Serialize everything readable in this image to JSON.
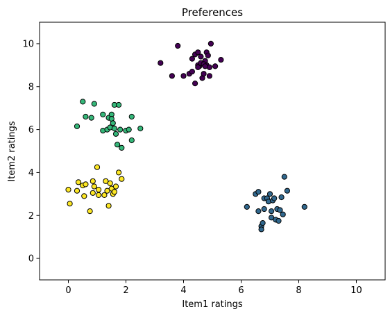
{
  "chart_data": {
    "type": "scatter",
    "title": "Preferences",
    "xlabel": "Item1 ratings",
    "ylabel": "Item2 ratings",
    "xlim": [
      -1,
      11
    ],
    "ylim": [
      -1,
      11
    ],
    "xticks": [
      0,
      2,
      4,
      6,
      8,
      10
    ],
    "yticks": [
      0,
      2,
      4,
      6,
      8,
      10
    ],
    "grid": false,
    "marker_edge_color": "#000000",
    "series": [
      {
        "color": "#440154",
        "points": [
          [
            3.2,
            9.1
          ],
          [
            3.6,
            8.5
          ],
          [
            3.8,
            9.9
          ],
          [
            4.0,
            8.5
          ],
          [
            4.2,
            8.6
          ],
          [
            4.3,
            8.7
          ],
          [
            4.3,
            9.3
          ],
          [
            4.4,
            9.5
          ],
          [
            4.4,
            8.15
          ],
          [
            4.5,
            9.6
          ],
          [
            4.5,
            9.0
          ],
          [
            4.55,
            8.95
          ],
          [
            4.6,
            9.1
          ],
          [
            4.6,
            9.4
          ],
          [
            4.65,
            8.4
          ],
          [
            4.7,
            8.6
          ],
          [
            4.75,
            9.2
          ],
          [
            4.8,
            9.6
          ],
          [
            4.8,
            9.0
          ],
          [
            4.85,
            9.45
          ],
          [
            4.9,
            8.9
          ],
          [
            4.9,
            8.5
          ],
          [
            4.95,
            10.0
          ],
          [
            5.1,
            8.95
          ],
          [
            5.3,
            9.25
          ],
          [
            4.7,
            9.05
          ],
          [
            4.5,
            8.9
          ],
          [
            4.75,
            8.95
          ]
        ]
      },
      {
        "color": "#31688e",
        "points": [
          [
            6.2,
            2.4
          ],
          [
            6.5,
            3.0
          ],
          [
            6.6,
            3.1
          ],
          [
            6.6,
            2.2
          ],
          [
            6.7,
            1.5
          ],
          [
            6.7,
            1.35
          ],
          [
            6.75,
            1.65
          ],
          [
            6.8,
            2.3
          ],
          [
            6.8,
            2.8
          ],
          [
            6.9,
            2.8
          ],
          [
            6.95,
            2.65
          ],
          [
            7.0,
            3.0
          ],
          [
            7.05,
            2.2
          ],
          [
            7.05,
            1.9
          ],
          [
            7.1,
            2.7
          ],
          [
            7.15,
            2.8
          ],
          [
            7.2,
            1.8
          ],
          [
            7.25,
            2.3
          ],
          [
            7.3,
            1.75
          ],
          [
            7.35,
            2.25
          ],
          [
            7.4,
            2.85
          ],
          [
            7.45,
            2.05
          ],
          [
            7.5,
            3.8
          ],
          [
            7.6,
            3.15
          ],
          [
            8.2,
            2.4
          ]
        ]
      },
      {
        "color": "#35b779",
        "points": [
          [
            0.3,
            6.15
          ],
          [
            0.5,
            7.3
          ],
          [
            0.6,
            6.6
          ],
          [
            0.8,
            6.55
          ],
          [
            0.9,
            7.2
          ],
          [
            1.2,
            6.7
          ],
          [
            1.2,
            5.95
          ],
          [
            1.35,
            6.0
          ],
          [
            1.4,
            6.55
          ],
          [
            1.45,
            6.1
          ],
          [
            1.5,
            6.7
          ],
          [
            1.5,
            6.5
          ],
          [
            1.55,
            6.3
          ],
          [
            1.6,
            7.15
          ],
          [
            1.6,
            6.05
          ],
          [
            1.65,
            5.8
          ],
          [
            1.7,
            5.3
          ],
          [
            1.75,
            7.15
          ],
          [
            1.8,
            6.0
          ],
          [
            1.85,
            5.15
          ],
          [
            2.0,
            5.95
          ],
          [
            2.1,
            6.0
          ],
          [
            2.2,
            6.6
          ],
          [
            2.2,
            5.5
          ],
          [
            2.5,
            6.05
          ]
        ]
      },
      {
        "color": "#fde725",
        "points": [
          [
            0.0,
            3.2
          ],
          [
            0.05,
            2.55
          ],
          [
            0.3,
            3.15
          ],
          [
            0.35,
            3.55
          ],
          [
            0.5,
            3.4
          ],
          [
            0.55,
            2.9
          ],
          [
            0.6,
            3.45
          ],
          [
            0.75,
            2.2
          ],
          [
            0.85,
            3.05
          ],
          [
            0.85,
            3.6
          ],
          [
            0.9,
            3.35
          ],
          [
            1.0,
            4.25
          ],
          [
            1.05,
            2.95
          ],
          [
            1.05,
            3.2
          ],
          [
            1.25,
            2.95
          ],
          [
            1.3,
            3.6
          ],
          [
            1.35,
            3.15
          ],
          [
            1.4,
            2.45
          ],
          [
            1.45,
            3.5
          ],
          [
            1.5,
            3.25
          ],
          [
            1.55,
            3.0
          ],
          [
            1.6,
            3.1
          ],
          [
            1.65,
            3.35
          ],
          [
            1.75,
            4.0
          ],
          [
            1.85,
            3.7
          ]
        ]
      }
    ]
  }
}
